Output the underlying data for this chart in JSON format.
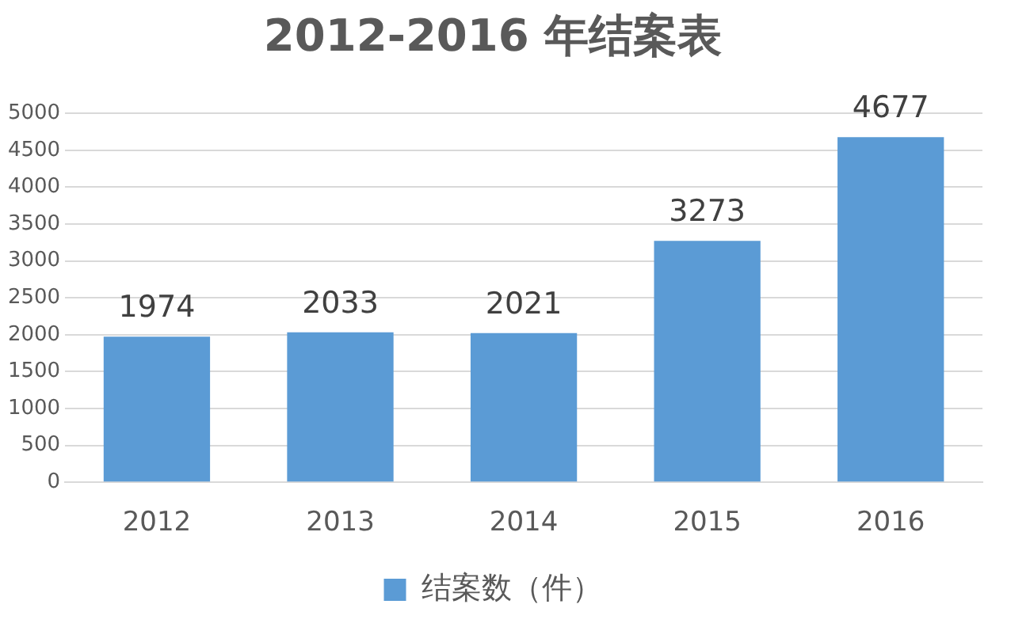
{
  "chart_data": {
    "type": "bar",
    "title": "2012-2016 年结案表",
    "categories": [
      "2012",
      "2013",
      "2014",
      "2015",
      "2016"
    ],
    "series": [
      {
        "name": "结案数（件）",
        "color": "#5b9bd5",
        "values": [
          1974,
          2033,
          2021,
          3273,
          4677
        ]
      }
    ],
    "ylim": [
      0,
      5000
    ],
    "yticks": [
      0,
      500,
      1000,
      1500,
      2000,
      2500,
      3000,
      3500,
      4000,
      4500,
      5000
    ],
    "grid": "y",
    "legend": "bottom",
    "data_labels": true
  }
}
